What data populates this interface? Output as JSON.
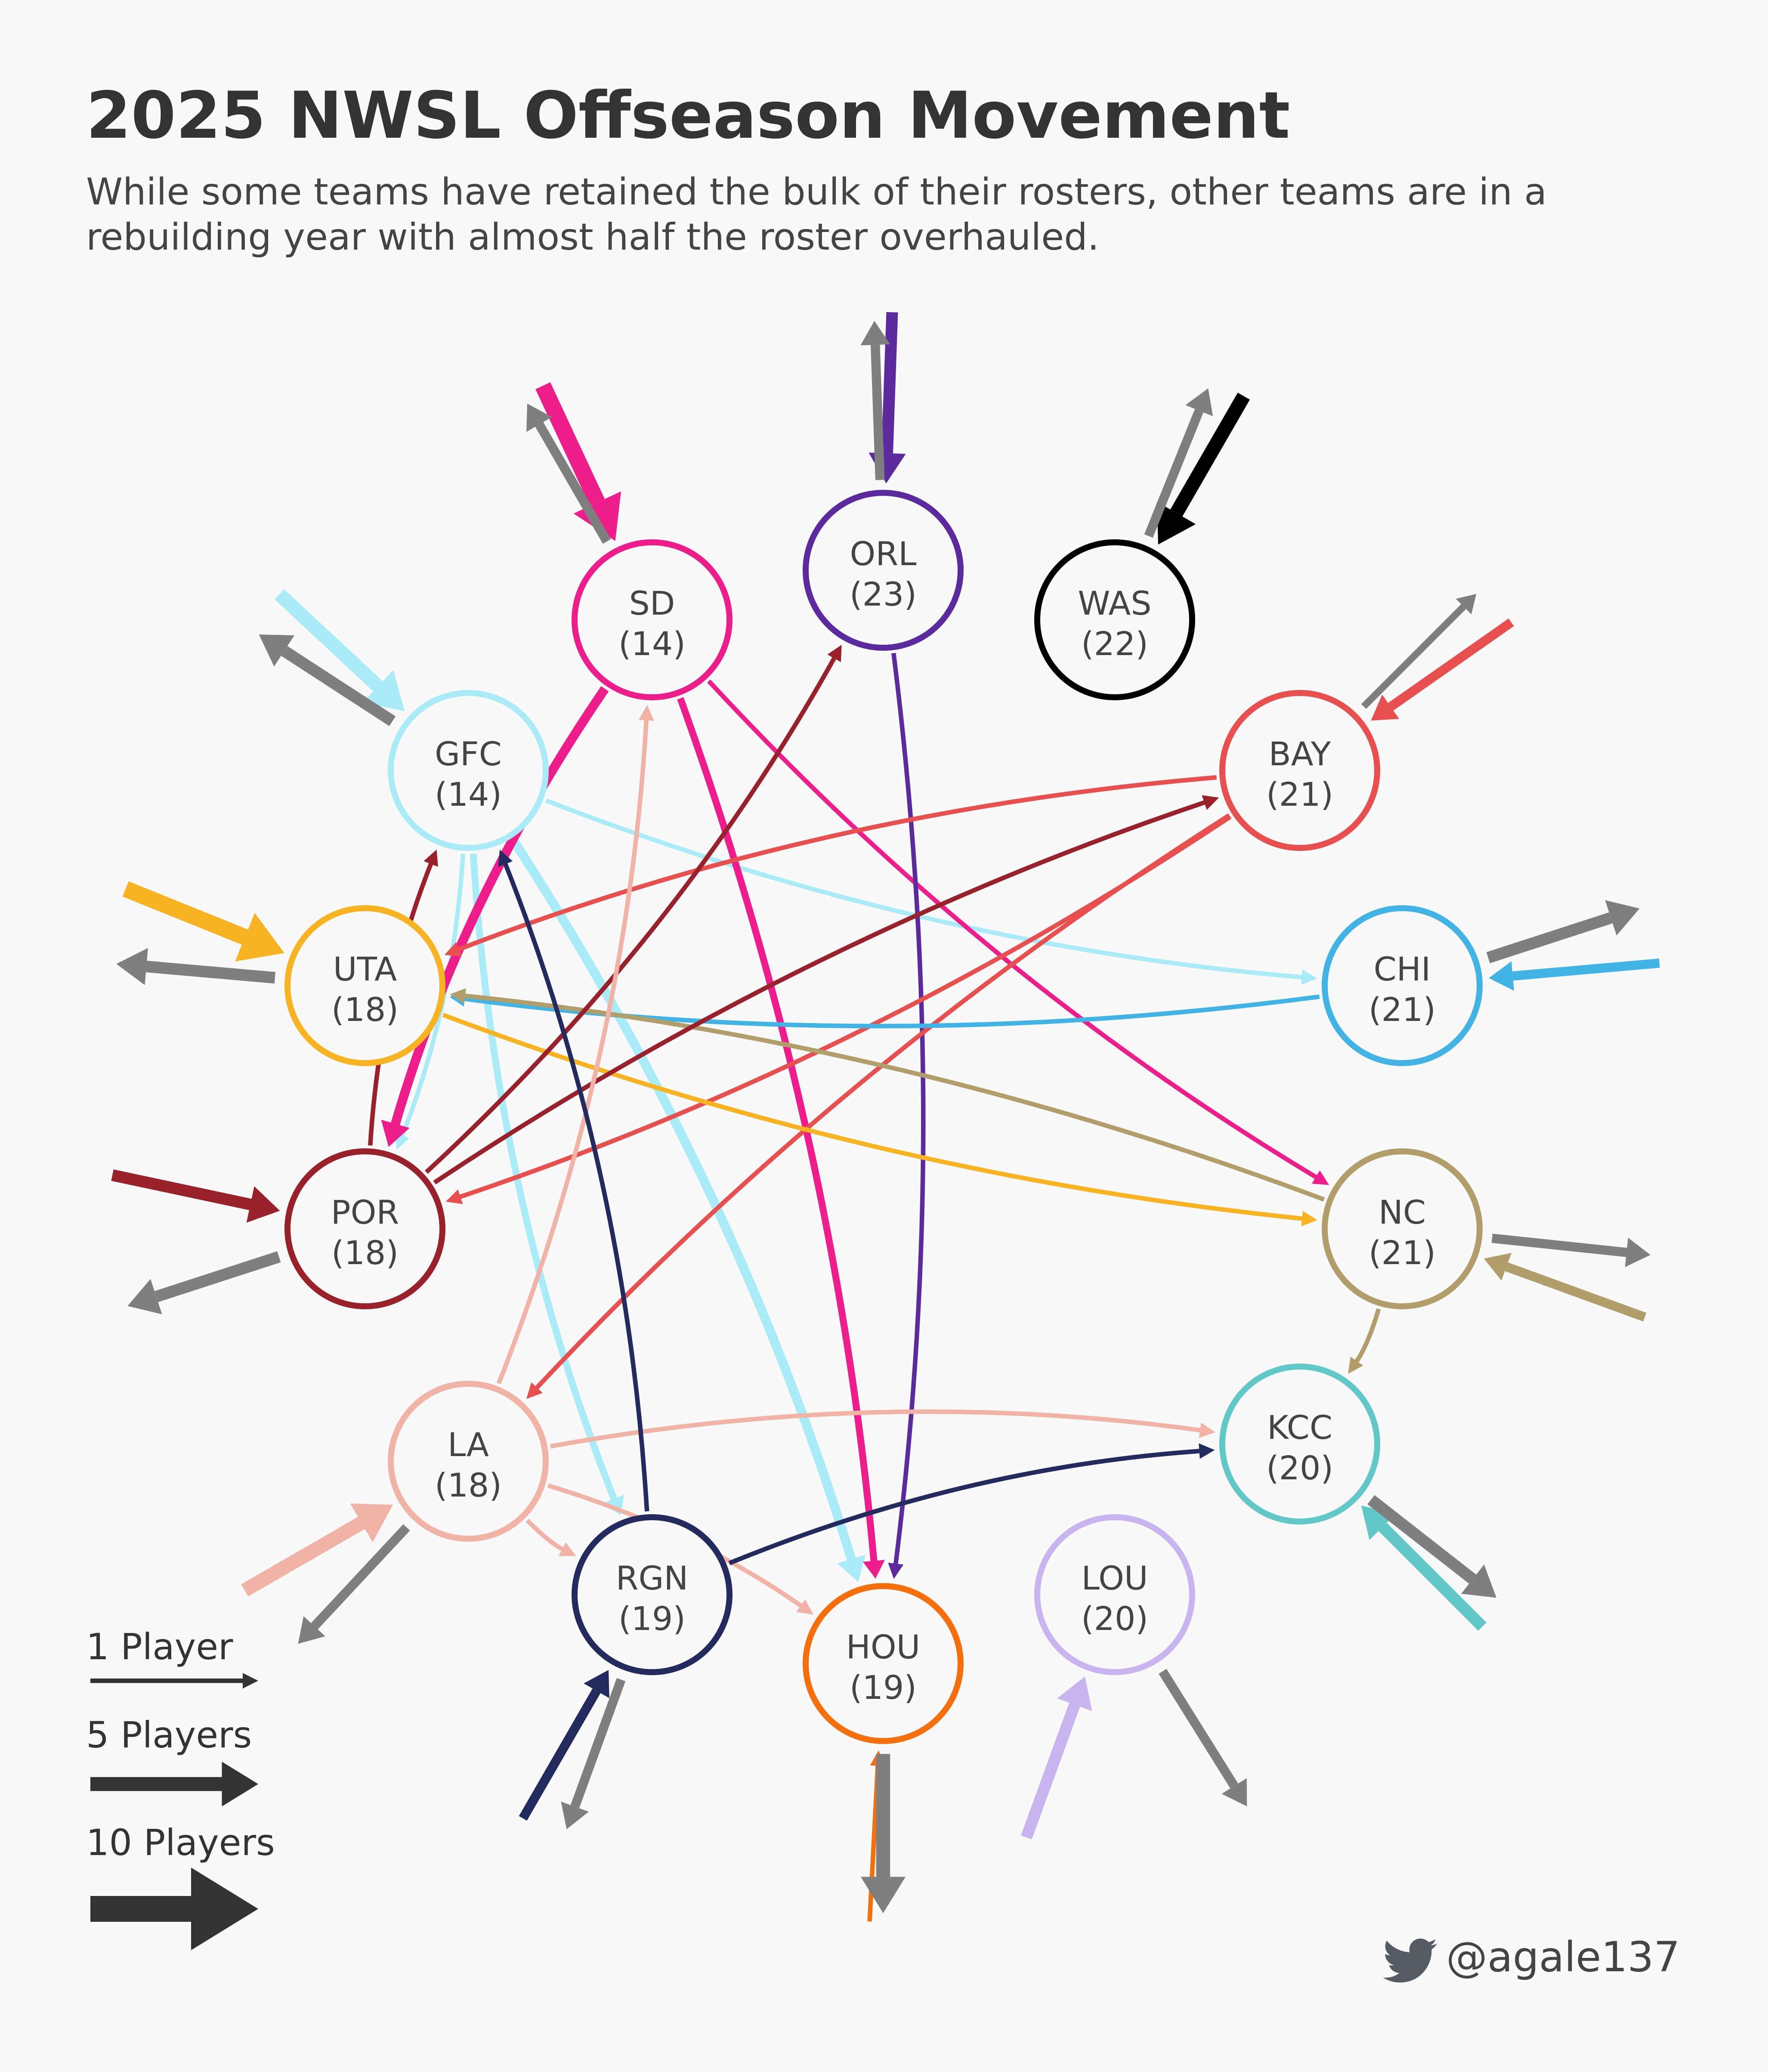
{
  "title": "2025 NWSL Offseason Movement",
  "subtitle_lines": [
    "While some teams have retained the bulk of their rosters, other teams are in a",
    "rebuilding year with almost half the roster overhauled."
  ],
  "teams": [
    {
      "id": "SD",
      "name": "SD",
      "count": "(14)",
      "color": "#ed1e8c"
    },
    {
      "id": "ORL",
      "name": "ORL",
      "count": "(23)",
      "color": "#5b2a9c"
    },
    {
      "id": "WAS",
      "name": "WAS",
      "count": "(22)",
      "color": "#000000"
    },
    {
      "id": "GFC",
      "name": "GFC",
      "count": "(14)",
      "color": "#a9ecf8"
    },
    {
      "id": "BAY",
      "name": "BAY",
      "count": "(21)",
      "color": "#e8504f"
    },
    {
      "id": "UTA",
      "name": "UTA",
      "count": "(18)",
      "color": "#f7b322"
    },
    {
      "id": "CHI",
      "name": "CHI",
      "count": "(21)",
      "color": "#41b3e4"
    },
    {
      "id": "POR",
      "name": "POR",
      "count": "(18)",
      "color": "#98212b"
    },
    {
      "id": "NC",
      "name": "NC",
      "count": "(21)",
      "color": "#b29e6b"
    },
    {
      "id": "LA",
      "name": "LA",
      "count": "(18)",
      "color": "#f0b3a6"
    },
    {
      "id": "KCC",
      "name": "KCC",
      "count": "(20)",
      "color": "#62c8c7"
    },
    {
      "id": "RGN",
      "name": "RGN",
      "count": "(19)",
      "color": "#232b5e"
    },
    {
      "id": "HOU",
      "name": "HOU",
      "count": "(19)",
      "color": "#f5700c"
    },
    {
      "id": "LOU",
      "name": "LOU",
      "count": "(20)",
      "color": "#c8b5f0"
    }
  ],
  "transfers": [
    {
      "from": "GFC",
      "to": "CHI",
      "players": 1
    },
    {
      "from": "GFC",
      "to": "POR",
      "players": 1
    },
    {
      "from": "GFC",
      "to": "RGN",
      "players": 2
    },
    {
      "from": "GFC",
      "to": "HOU",
      "players": 3
    },
    {
      "from": "SD",
      "to": "POR",
      "players": 3
    },
    {
      "from": "SD",
      "to": "HOU",
      "players": 2
    },
    {
      "from": "SD",
      "to": "NC",
      "players": 1
    },
    {
      "from": "ORL",
      "to": "HOU",
      "players": 1
    },
    {
      "from": "BAY",
      "to": "UTA",
      "players": 1
    },
    {
      "from": "BAY",
      "to": "POR",
      "players": 1
    },
    {
      "from": "BAY",
      "to": "LA",
      "players": 1
    },
    {
      "from": "CHI",
      "to": "UTA",
      "players": 1
    },
    {
      "from": "NC",
      "to": "UTA",
      "players": 1
    },
    {
      "from": "NC",
      "to": "KCC",
      "players": 1
    },
    {
      "from": "UTA",
      "to": "NC",
      "players": 1
    },
    {
      "from": "POR",
      "to": "GFC",
      "players": 1
    },
    {
      "from": "POR",
      "to": "ORL",
      "players": 1
    },
    {
      "from": "POR",
      "to": "BAY",
      "players": 1
    },
    {
      "from": "LA",
      "to": "SD",
      "players": 1
    },
    {
      "from": "LA",
      "to": "KCC",
      "players": 1
    },
    {
      "from": "LA",
      "to": "RGN",
      "players": 1
    },
    {
      "from": "LA",
      "to": "HOU",
      "players": 1
    },
    {
      "from": "RGN",
      "to": "GFC",
      "players": 1
    },
    {
      "from": "RGN",
      "to": "KCC",
      "players": 1
    }
  ],
  "external": [
    {
      "team": "SD",
      "in": 6,
      "out": 3
    },
    {
      "team": "ORL",
      "in": 4,
      "out": 3
    },
    {
      "team": "WAS",
      "in": 5,
      "out": 3
    },
    {
      "team": "GFC",
      "in": 5,
      "out": 4
    },
    {
      "team": "BAY",
      "in": 3,
      "out": 2
    },
    {
      "team": "UTA",
      "in": 6,
      "out": 4
    },
    {
      "team": "CHI",
      "in": 3,
      "out": 4
    },
    {
      "team": "POR",
      "in": 4,
      "out": 4
    },
    {
      "team": "NC",
      "in": 3,
      "out": 3
    },
    {
      "team": "LA",
      "in": 5,
      "out": 3
    },
    {
      "team": "KCC",
      "in": 4,
      "out": 4
    },
    {
      "team": "RGN",
      "in": 3,
      "out": 3
    },
    {
      "team": "HOU",
      "in": 1,
      "out": 5
    },
    {
      "team": "LOU",
      "in": 4,
      "out": 3
    }
  ],
  "legend": [
    {
      "label": "1 Player",
      "players": 1
    },
    {
      "label": "5 Players",
      "players": 5
    },
    {
      "label": "10 Players",
      "players": 10
    }
  ],
  "credit": {
    "handle": "@agale137",
    "icon": "twitter-bird-icon"
  },
  "colors": {
    "background": "#f9f9f9",
    "text": "#333333",
    "gray_arrow": "#7f7f7f",
    "legend_arrow": "#333333"
  }
}
